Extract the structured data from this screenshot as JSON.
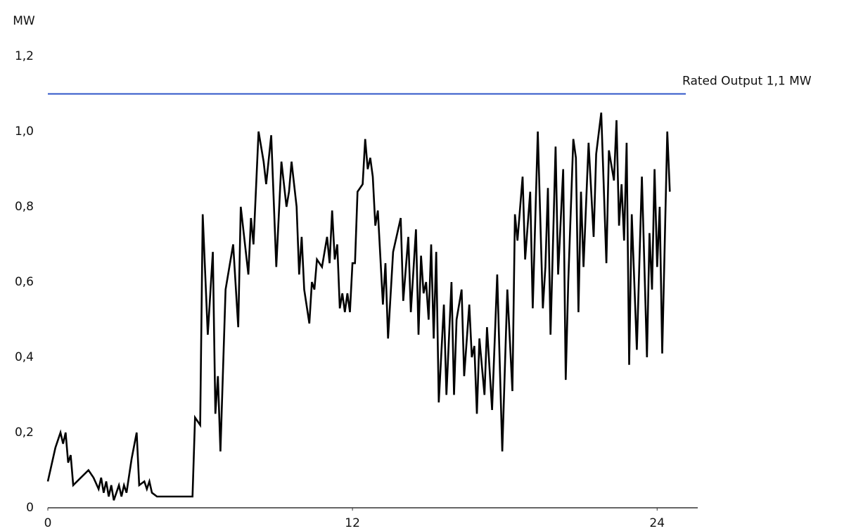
{
  "chart_data": {
    "type": "line",
    "y_label": "MW",
    "x": [
      0,
      0.3,
      0.5,
      0.6,
      0.7,
      0.8,
      0.9,
      1.0,
      1.3,
      1.6,
      1.8,
      2.0,
      2.1,
      2.2,
      2.3,
      2.4,
      2.5,
      2.6,
      2.8,
      2.9,
      3.0,
      3.1,
      3.3,
      3.5,
      3.6,
      3.8,
      3.9,
      4.0,
      4.1,
      4.3,
      5.7,
      5.8,
      6.0,
      6.1,
      6.3,
      6.5,
      6.6,
      6.7,
      6.8,
      7.0,
      7.3,
      7.5,
      7.6,
      7.9,
      8.0,
      8.1,
      8.3,
      8.5,
      8.6,
      8.8,
      9.0,
      9.2,
      9.4,
      9.5,
      9.6,
      9.8,
      9.9,
      10.0,
      10.1,
      10.3,
      10.4,
      10.5,
      10.6,
      10.8,
      11.0,
      11.1,
      11.2,
      11.3,
      11.4,
      11.5,
      11.6,
      11.7,
      11.8,
      11.9,
      12.0,
      12.1,
      12.2,
      12.4,
      12.5,
      12.6,
      12.7,
      12.8,
      12.9,
      13.0,
      13.2,
      13.3,
      13.4,
      13.6,
      13.9,
      14.0,
      14.2,
      14.3,
      14.5,
      14.6,
      14.7,
      14.8,
      14.9,
      15.0,
      15.1,
      15.2,
      15.3,
      15.4,
      15.6,
      15.7,
      15.9,
      16.0,
      16.1,
      16.3,
      16.4,
      16.6,
      16.7,
      16.8,
      16.9,
      17.0,
      17.2,
      17.3,
      17.5,
      17.7,
      17.9,
      18.1,
      18.3,
      18.4,
      18.5,
      18.7,
      18.8,
      19.0,
      19.1,
      19.3,
      19.5,
      19.6,
      19.7,
      19.8,
      20.0,
      20.1,
      20.3,
      20.4,
      20.5,
      20.7,
      20.8,
      20.9,
      21.0,
      21.1,
      21.3,
      21.5,
      21.6,
      21.8,
      22.0,
      22.1,
      22.3,
      22.4,
      22.5,
      22.6,
      22.7,
      22.8,
      22.9,
      23.0,
      23.2,
      23.4,
      23.6,
      23.7,
      23.8,
      23.9,
      24.0,
      24.1,
      24.2,
      24.4,
      24.5
    ],
    "values": [
      0.07,
      0.16,
      0.2,
      0.17,
      0.2,
      0.12,
      0.14,
      0.06,
      0.08,
      0.1,
      0.08,
      0.05,
      0.08,
      0.04,
      0.07,
      0.03,
      0.06,
      0.02,
      0.06,
      0.03,
      0.06,
      0.04,
      0.13,
      0.2,
      0.06,
      0.07,
      0.05,
      0.07,
      0.04,
      0.03,
      0.03,
      0.24,
      0.22,
      0.78,
      0.46,
      0.68,
      0.25,
      0.35,
      0.15,
      0.58,
      0.7,
      0.48,
      0.8,
      0.62,
      0.77,
      0.7,
      1.0,
      0.92,
      0.86,
      0.99,
      0.64,
      0.92,
      0.8,
      0.84,
      0.92,
      0.8,
      0.62,
      0.72,
      0.58,
      0.49,
      0.6,
      0.58,
      0.66,
      0.64,
      0.72,
      0.65,
      0.79,
      0.66,
      0.7,
      0.53,
      0.57,
      0.52,
      0.57,
      0.52,
      0.65,
      0.65,
      0.84,
      0.86,
      0.98,
      0.9,
      0.93,
      0.88,
      0.75,
      0.79,
      0.54,
      0.65,
      0.45,
      0.68,
      0.77,
      0.55,
      0.72,
      0.52,
      0.74,
      0.46,
      0.67,
      0.57,
      0.6,
      0.5,
      0.7,
      0.45,
      0.68,
      0.28,
      0.54,
      0.3,
      0.6,
      0.3,
      0.5,
      0.58,
      0.35,
      0.54,
      0.4,
      0.43,
      0.25,
      0.45,
      0.3,
      0.48,
      0.26,
      0.62,
      0.15,
      0.58,
      0.31,
      0.78,
      0.71,
      0.88,
      0.66,
      0.84,
      0.53,
      1.0,
      0.53,
      0.64,
      0.85,
      0.46,
      0.96,
      0.62,
      0.9,
      0.34,
      0.6,
      0.98,
      0.93,
      0.52,
      0.84,
      0.64,
      0.97,
      0.72,
      0.94,
      1.05,
      0.65,
      0.95,
      0.87,
      1.03,
      0.75,
      0.86,
      0.71,
      0.97,
      0.38,
      0.78,
      0.42,
      0.88,
      0.4,
      0.73,
      0.58,
      0.9,
      0.64,
      0.8,
      0.41,
      1.0,
      0.84
    ],
    "color": "#000000",
    "xlim": [
      0,
      25.6
    ],
    "xticks": [
      0,
      12,
      24
    ],
    "ylim": [
      0,
      1.2
    ],
    "yticks": [
      0,
      {
        "value": 0.2,
        "label": "0,2"
      },
      {
        "value": 0.4,
        "label": "0,4"
      },
      {
        "value": 0.6,
        "label": "0,6"
      },
      {
        "value": 0.8,
        "label": "0,8"
      },
      {
        "value": 1.0,
        "label": "1,0"
      },
      {
        "value": 1.2,
        "label": "1,2"
      }
    ],
    "annotation": {
      "text": "Rated Output 1,1 MW",
      "value": 1.1,
      "color": "#2f55c8"
    }
  }
}
